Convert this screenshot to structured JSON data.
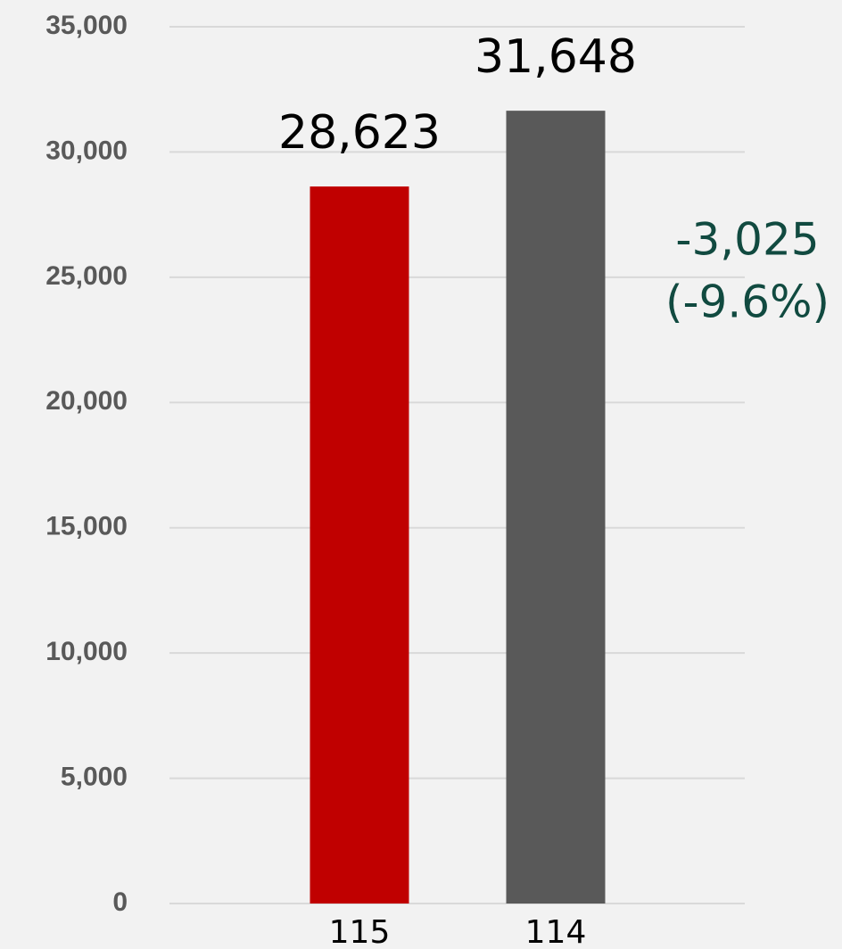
{
  "chart_data": {
    "type": "bar",
    "categories": [
      "115",
      "114"
    ],
    "values": [
      28623,
      31648
    ],
    "value_labels": [
      "28,623",
      "31,648"
    ],
    "colors": [
      "#c00000",
      "#595959"
    ],
    "annotation": [
      "-3,025",
      "(-9.6%)"
    ],
    "annotation_color": "#114a40",
    "ylim": [
      0,
      35000
    ],
    "yticks": [
      0,
      {
        "value": 5000,
        "label": "5,000"
      },
      {
        "value": 10000,
        "label": "10,000"
      },
      {
        "value": 15000,
        "label": "15,000"
      },
      {
        "value": 20000,
        "label": "20,000"
      },
      {
        "value": 25000,
        "label": "25,000"
      },
      {
        "value": 30000,
        "label": "30,000"
      },
      {
        "value": 35000,
        "label": "35,000"
      }
    ],
    "grid": true
  }
}
